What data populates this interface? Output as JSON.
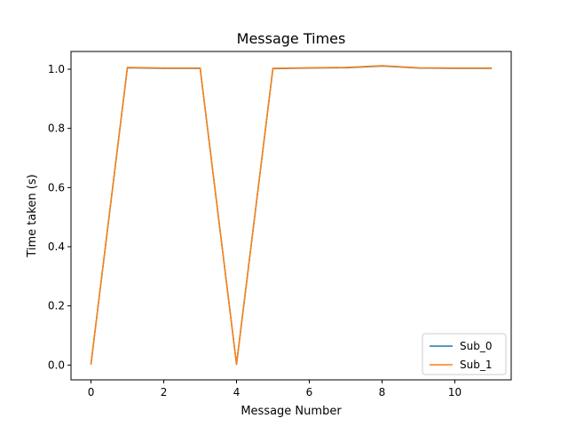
{
  "chart_data": {
    "type": "line",
    "title": "Message Times",
    "xlabel": "Message Number",
    "ylabel": "Time taken (s)",
    "x": [
      0,
      1,
      2,
      3,
      4,
      5,
      6,
      7,
      8,
      9,
      10,
      11
    ],
    "xlim": [
      -0.55,
      11.55
    ],
    "ylim": [
      -0.05,
      1.06
    ],
    "xticks": [
      0,
      2,
      4,
      6,
      8,
      10
    ],
    "yticks": [
      0.0,
      0.2,
      0.4,
      0.6,
      0.8,
      1.0
    ],
    "xtick_labels": [
      "0",
      "2",
      "4",
      "6",
      "8",
      "10"
    ],
    "ytick_labels": [
      "0.0",
      "0.2",
      "0.4",
      "0.6",
      "0.8",
      "1.0"
    ],
    "grid": false,
    "legend": "lower-right",
    "series": [
      {
        "name": "Sub_0",
        "color": "#1f77b4",
        "values": [
          0.004,
          1.005,
          1.003,
          1.003,
          0.003,
          1.002,
          1.004,
          1.005,
          1.011,
          1.004,
          1.003,
          1.003
        ]
      },
      {
        "name": "Sub_1",
        "color": "#ff7f0e",
        "values": [
          0.004,
          1.006,
          1.004,
          1.004,
          0.003,
          1.003,
          1.005,
          1.006,
          1.012,
          1.005,
          1.004,
          1.004
        ]
      }
    ]
  }
}
